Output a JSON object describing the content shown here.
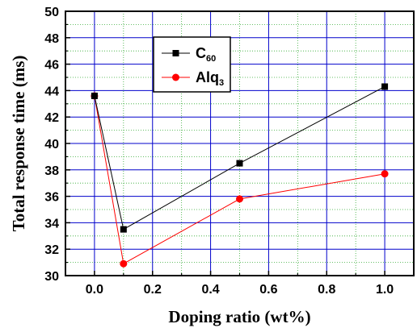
{
  "chart_data": {
    "type": "line",
    "title": "",
    "xlabel": "Doping ratio (wt%)",
    "ylabel": "Total response time (ms)",
    "xlim": [
      -0.1,
      1.1
    ],
    "ylim": [
      30,
      50
    ],
    "x_ticks": [
      "0.0",
      "0.2",
      "0.4",
      "0.6",
      "0.8",
      "1.0"
    ],
    "y_ticks": [
      "30",
      "32",
      "34",
      "36",
      "38",
      "40",
      "42",
      "44",
      "46",
      "48",
      "50"
    ],
    "grid": true,
    "legend_position": "top-left-inside",
    "series": [
      {
        "name": "C60",
        "name_base": "C",
        "name_sub": "60",
        "color": "#000000",
        "marker": "square",
        "x": [
          0.0,
          0.1,
          0.5,
          1.0
        ],
        "y": [
          43.6,
          33.5,
          38.5,
          44.3
        ]
      },
      {
        "name": "Alq3",
        "name_base": "Alq",
        "name_sub": "3",
        "color": "#ff0000",
        "marker": "circle",
        "x": [
          0.0,
          0.1,
          0.5,
          1.0
        ],
        "y": [
          43.6,
          30.9,
          35.8,
          37.7
        ]
      }
    ],
    "grid_color_major": "#0000cc",
    "grid_color_minor": "#33aa33"
  }
}
